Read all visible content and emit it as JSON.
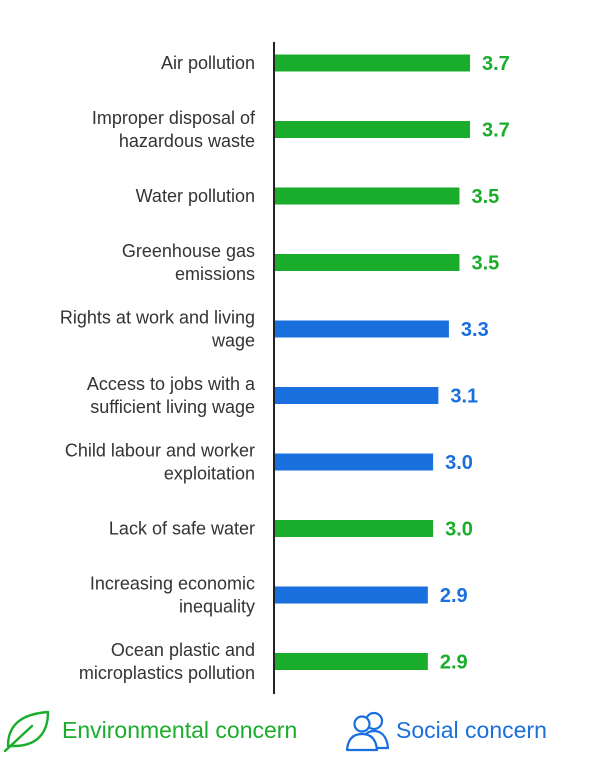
{
  "chart_data": {
    "type": "bar",
    "orientation": "horizontal",
    "categories": [
      [
        "Air pollution"
      ],
      [
        "Improper disposal of",
        "hazardous waste"
      ],
      [
        "Water pollution"
      ],
      [
        "Greenhouse gas",
        "emissions"
      ],
      [
        "Rights at work and living",
        "wage"
      ],
      [
        "Access to jobs with a",
        "sufficient living wage"
      ],
      [
        "Child labour and worker",
        "exploitation"
      ],
      [
        "Lack of safe water"
      ],
      [
        "Increasing economic",
        "inequality"
      ],
      [
        "Ocean plastic and",
        "microplastics pollution"
      ]
    ],
    "values": [
      3.7,
      3.7,
      3.5,
      3.5,
      3.3,
      3.1,
      3.0,
      3.0,
      2.9,
      2.9
    ],
    "value_labels": [
      "3.7",
      "3.7",
      "3.5",
      "3.5",
      "3.3",
      "3.1",
      "3.0",
      "3.0",
      "2.9",
      "2.9"
    ],
    "groups": [
      "environmental",
      "environmental",
      "environmental",
      "environmental",
      "social",
      "social",
      "social",
      "environmental",
      "social",
      "environmental"
    ],
    "colors": {
      "environmental": "#1aac2b",
      "social": "#1a6fde"
    },
    "xlim": [
      0,
      3.7
    ],
    "grid": false,
    "legend_position": "bottom"
  },
  "legend": {
    "environmental": {
      "label": "Environmental concern",
      "icon": "leaf-icon"
    },
    "social": {
      "label": "Social concern",
      "icon": "people-icon"
    }
  }
}
